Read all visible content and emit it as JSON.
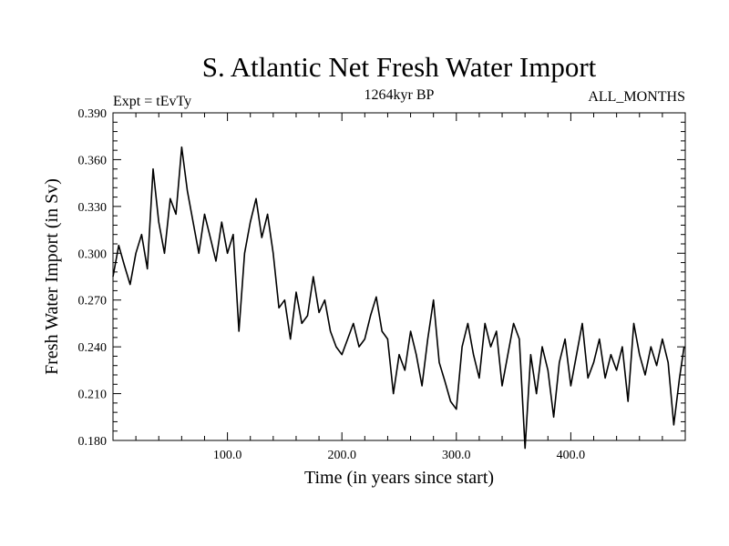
{
  "chart_data": {
    "type": "line",
    "title": "S. Atlantic Net Fresh Water Import",
    "subtitle": "1264kyr BP",
    "experiment_label": "Expt = tEvTy",
    "period_label": "ALL_MONTHS",
    "xlabel": "Time (in years since start)",
    "ylabel": "Fresh Water Import (in Sv)",
    "xlim": [
      0,
      500
    ],
    "ylim": [
      0.18,
      0.39
    ],
    "x_ticks": [
      100,
      200,
      300,
      400
    ],
    "x_tick_labels": [
      "100.0",
      "200.0",
      "300.0",
      "400.0"
    ],
    "x_minor_step": 20,
    "y_ticks": [
      0.18,
      0.21,
      0.24,
      0.27,
      0.3,
      0.33,
      0.36,
      0.39
    ],
    "y_tick_labels": [
      "0.180",
      "0.210",
      "0.240",
      "0.270",
      "0.300",
      "0.330",
      "0.360",
      "0.390"
    ],
    "y_minor_step": 0.006,
    "grid": false,
    "series": [
      {
        "name": "S. Atlantic net fresh water import",
        "color": "#000000",
        "x": [
          0,
          5,
          10,
          15,
          20,
          25,
          30,
          35,
          40,
          45,
          50,
          55,
          60,
          65,
          70,
          75,
          80,
          85,
          90,
          95,
          100,
          105,
          110,
          115,
          120,
          125,
          130,
          135,
          140,
          145,
          150,
          155,
          160,
          165,
          170,
          175,
          180,
          185,
          190,
          195,
          200,
          205,
          210,
          215,
          220,
          225,
          230,
          235,
          240,
          245,
          250,
          255,
          260,
          265,
          270,
          275,
          280,
          285,
          290,
          295,
          300,
          305,
          310,
          315,
          320,
          325,
          330,
          335,
          340,
          345,
          350,
          355,
          360,
          365,
          370,
          375,
          380,
          385,
          390,
          395,
          400,
          405,
          410,
          415,
          420,
          425,
          430,
          435,
          440,
          445,
          450,
          455,
          460,
          465,
          470,
          475,
          480,
          485,
          490,
          495,
          499
        ],
        "values": [
          0.285,
          0.305,
          0.292,
          0.28,
          0.3,
          0.312,
          0.29,
          0.354,
          0.32,
          0.3,
          0.335,
          0.325,
          0.368,
          0.34,
          0.32,
          0.3,
          0.325,
          0.31,
          0.295,
          0.32,
          0.3,
          0.312,
          0.25,
          0.3,
          0.32,
          0.335,
          0.31,
          0.325,
          0.3,
          0.265,
          0.27,
          0.245,
          0.275,
          0.255,
          0.26,
          0.285,
          0.262,
          0.27,
          0.25,
          0.24,
          0.235,
          0.245,
          0.255,
          0.24,
          0.245,
          0.26,
          0.272,
          0.25,
          0.245,
          0.21,
          0.235,
          0.225,
          0.25,
          0.235,
          0.215,
          0.245,
          0.27,
          0.23,
          0.218,
          0.205,
          0.2,
          0.24,
          0.255,
          0.235,
          0.22,
          0.255,
          0.24,
          0.25,
          0.215,
          0.235,
          0.255,
          0.245,
          0.175,
          0.235,
          0.21,
          0.24,
          0.225,
          0.195,
          0.23,
          0.245,
          0.215,
          0.235,
          0.255,
          0.22,
          0.23,
          0.245,
          0.22,
          0.235,
          0.225,
          0.24,
          0.205,
          0.255,
          0.235,
          0.222,
          0.24,
          0.228,
          0.245,
          0.23,
          0.19,
          0.22,
          0.24
        ]
      }
    ]
  }
}
